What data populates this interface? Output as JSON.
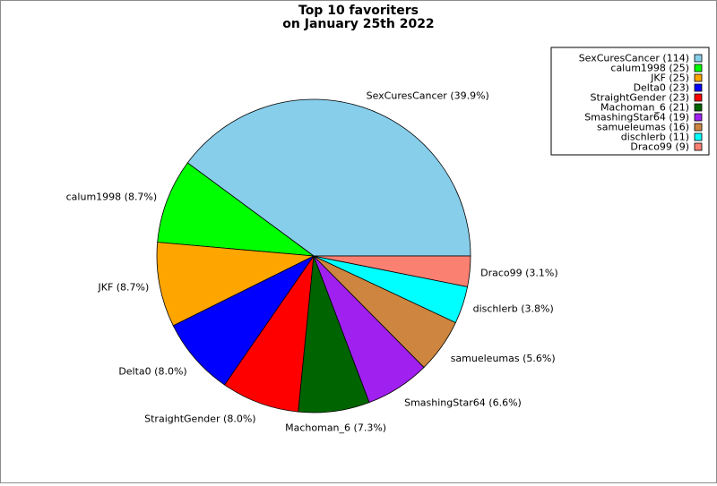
{
  "chart_data": {
    "type": "pie",
    "title_lines": [
      "Top 10 favoriters",
      "on January 25th 2022"
    ],
    "slices": [
      {
        "label": "SexCuresCancer",
        "value": 114,
        "percent_label": "SexCuresCancer (39.9%)",
        "legend_label": "SexCuresCancer (114)",
        "color": "#87ceeb"
      },
      {
        "label": "calum1998",
        "value": 25,
        "percent_label": "calum1998 (8.7%)",
        "legend_label": "calum1998 (25)",
        "color": "#00ff00"
      },
      {
        "label": "JKF",
        "value": 25,
        "percent_label": "JKF (8.7%)",
        "legend_label": "JKF (25)",
        "color": "#ffa500"
      },
      {
        "label": "Delta0",
        "value": 23,
        "percent_label": "Delta0 (8.0%)",
        "legend_label": "Delta0 (23)",
        "color": "#0000ff"
      },
      {
        "label": "StraightGender",
        "value": 23,
        "percent_label": "StraightGender (8.0%)",
        "legend_label": "StraightGender (23)",
        "color": "#ff0000"
      },
      {
        "label": "Machoman_6",
        "value": 21,
        "percent_label": "Machoman_6 (7.3%)",
        "legend_label": "Machoman_6 (21)",
        "color": "#006400"
      },
      {
        "label": "SmashingStar64",
        "value": 19,
        "percent_label": "SmashingStar64 (6.6%)",
        "legend_label": "SmashingStar64 (19)",
        "color": "#a020f0"
      },
      {
        "label": "samueleumas",
        "value": 16,
        "percent_label": "samueleumas (5.6%)",
        "legend_label": "samueleumas (16)",
        "color": "#cd853f"
      },
      {
        "label": "dischlerb",
        "value": 11,
        "percent_label": "dischlerb (3.8%)",
        "legend_label": "dischlerb (11)",
        "color": "#00ffff"
      },
      {
        "label": "Draco99",
        "value": 9,
        "percent_label": "Draco99 (3.1%)",
        "legend_label": "Draco99 (9)",
        "color": "#fa8072"
      }
    ],
    "start_angle_deg": 0,
    "direction": "counterclockwise",
    "legend_position": "top-right"
  }
}
